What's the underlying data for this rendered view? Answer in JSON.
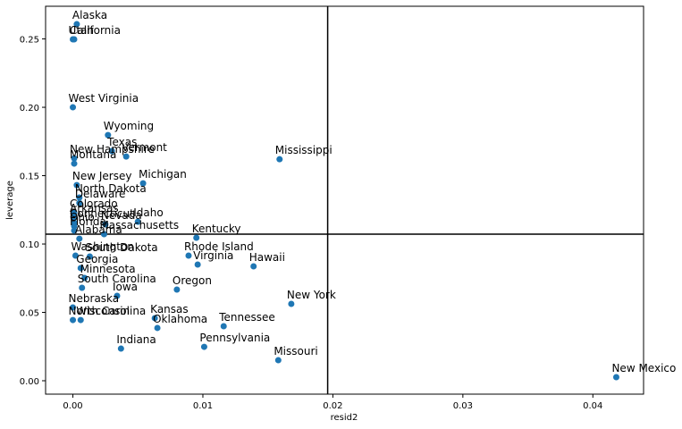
{
  "chart_data": {
    "type": "scatter",
    "x_label": "resid2",
    "y_label": "leverage",
    "color": "#1f77b4",
    "xlim": [
      -0.0021,
      0.0439
    ],
    "ylim": [
      -0.0098,
      0.2739
    ],
    "xticks": [
      {
        "value": 0,
        "label": "0.00"
      },
      0.01,
      0.02,
      0.03,
      0.04
    ],
    "yticks": [
      {
        "value": 0,
        "label": "0.00"
      },
      0.05,
      {
        "value": 0.1,
        "label": "0.10"
      },
      0.15,
      {
        "value": 0.2,
        "label": "0.20"
      },
      0.25
    ],
    "reference_lines": {
      "x": 0.0196,
      "y": 0.1072
    },
    "labels": [
      "Alaska",
      "Utah",
      "California",
      "West Virginia",
      "Wyoming",
      "Texas",
      "Vermont",
      "New Hampshire",
      "Montana",
      "Mississippi",
      "Michigan",
      "New Jersey",
      "North Dakota",
      "Delaware",
      "Colorado",
      "Arkansas",
      "Connecticut",
      "Ohio",
      "Nevada",
      "Idaho",
      "Kentucky",
      "Massachusetts",
      "Florida",
      "Alabama",
      "Rhode Island",
      "Washington",
      "South Dakota",
      "Virginia",
      "Hawaii",
      "Georgia",
      "Minnesota",
      "South Carolina",
      "Oregon",
      "Iowa",
      "New York",
      "Nebraska",
      "North Carolina",
      "Wisconsin",
      "Kansas",
      "Oklahoma",
      "Tennessee",
      "Pennsylvania",
      "Indiana",
      "Missouri",
      "New Mexico"
    ],
    "x": [
      0.0003,
      0.0,
      0.0001,
      0.0,
      0.0027,
      0.003,
      0.0041,
      0.0001,
      0.0001,
      0.0159,
      0.0054,
      0.0003,
      0.0005,
      0.0005,
      0.0001,
      0.0001,
      0.0001,
      0.0001,
      0.0025,
      0.005,
      0.0095,
      0.0024,
      0.0001,
      0.0005,
      0.0089,
      0.0002,
      0.0013,
      0.0096,
      0.0139,
      0.0006,
      0.0009,
      0.0007,
      0.008,
      0.0034,
      0.0168,
      0.0,
      0.0,
      0.0006,
      0.0063,
      0.0065,
      0.0116,
      0.0101,
      0.0037,
      0.0158,
      0.0418
    ],
    "values": [
      0.2608,
      0.2497,
      0.2497,
      0.2,
      0.1797,
      0.168,
      0.164,
      0.1627,
      0.1588,
      0.162,
      0.1444,
      0.1431,
      0.134,
      0.13,
      0.1229,
      0.1196,
      0.1157,
      0.1131,
      0.1144,
      0.1163,
      0.1046,
      0.1072,
      0.1098,
      0.1039,
      0.0915,
      0.0915,
      0.0909,
      0.085,
      0.0837,
      0.0824,
      0.0752,
      0.068,
      0.0667,
      0.0621,
      0.0562,
      0.0536,
      0.0444,
      0.0444,
      0.0458,
      0.0386,
      0.0399,
      0.0248,
      0.0235,
      0.015,
      0.0026
    ]
  }
}
